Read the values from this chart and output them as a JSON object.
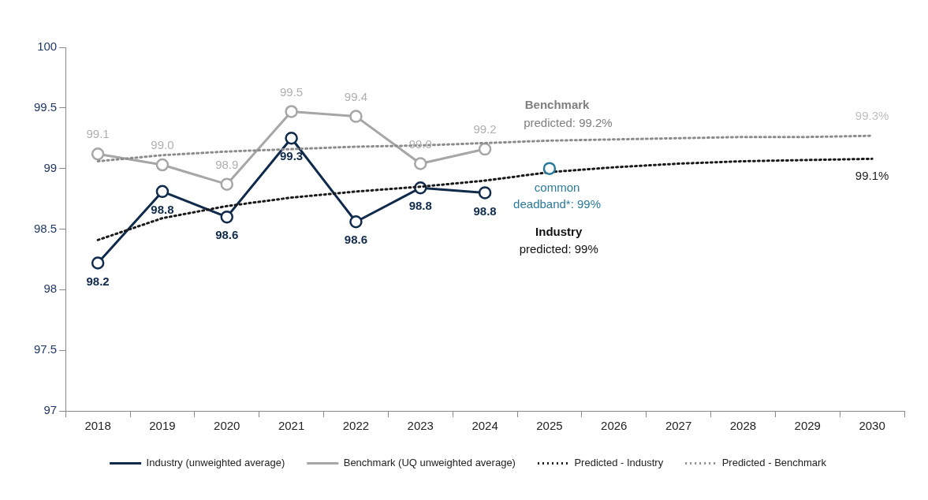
{
  "chart_data": {
    "type": "line",
    "categories": [
      "2018",
      "2019",
      "2020",
      "2021",
      "2022",
      "2023",
      "2024",
      "2025",
      "2026",
      "2027",
      "2028",
      "2029",
      "2030"
    ],
    "ylim": [
      97,
      100
    ],
    "yticks": [
      97,
      97.5,
      98,
      98.5,
      99,
      99.5,
      100
    ],
    "grid": false,
    "legend": "bottom",
    "series": [
      {
        "name": "Industry (unweighted average)",
        "color": "#0f2a4a",
        "marker": "circle",
        "line_style": "solid",
        "values": [
          98.22,
          98.81,
          98.6,
          99.25,
          98.56,
          98.84,
          98.8,
          null,
          null,
          null,
          null,
          null,
          null
        ],
        "value_labels": [
          "98.2",
          "98.8",
          "98.6",
          "99.3",
          "98.6",
          "98.8",
          "98.8",
          null,
          null,
          null,
          null,
          null,
          null
        ]
      },
      {
        "name": "Benchmark (UQ unweighted average)",
        "color": "#a6a6a6",
        "marker": "circle",
        "line_style": "solid",
        "values": [
          99.12,
          99.03,
          98.87,
          99.47,
          99.43,
          99.04,
          99.16,
          null,
          null,
          null,
          null,
          null,
          null
        ],
        "value_labels": [
          "99.1",
          "99.0",
          "98.9",
          "99.5",
          "99.4",
          "99.0",
          "99.2",
          null,
          null,
          null,
          null,
          null,
          null
        ]
      },
      {
        "name": "Predicted - Industry",
        "color": "#1a1a1a",
        "marker": "none",
        "line_style": "dotted",
        "values": [
          98.41,
          98.59,
          98.69,
          98.76,
          98.81,
          98.85,
          98.9,
          98.97,
          99.01,
          99.04,
          99.06,
          99.07,
          99.08
        ],
        "value_labels": [
          null,
          null,
          null,
          null,
          null,
          null,
          null,
          null,
          null,
          null,
          null,
          null,
          "99.1%"
        ]
      },
      {
        "name": "Predicted - Benchmark",
        "color": "#8c8c8c",
        "marker": "none",
        "line_style": "dotted",
        "values": [
          99.06,
          99.11,
          99.14,
          99.16,
          99.18,
          99.19,
          99.21,
          99.23,
          99.24,
          99.25,
          99.26,
          99.26,
          99.27
        ],
        "value_labels": [
          null,
          null,
          null,
          null,
          null,
          null,
          null,
          null,
          null,
          null,
          null,
          null,
          "99.3%"
        ]
      },
      {
        "type": "scatter",
        "color": "#2a7a9a",
        "marker": "circle",
        "values": [
          null,
          null,
          null,
          null,
          null,
          null,
          null,
          99,
          null,
          null,
          null,
          null,
          null
        ]
      }
    ],
    "annotations": [
      "Benchmark",
      "predicted: 99.2%",
      "common",
      "deadband*: 99%",
      "Industry",
      "predicted: 99%"
    ]
  }
}
